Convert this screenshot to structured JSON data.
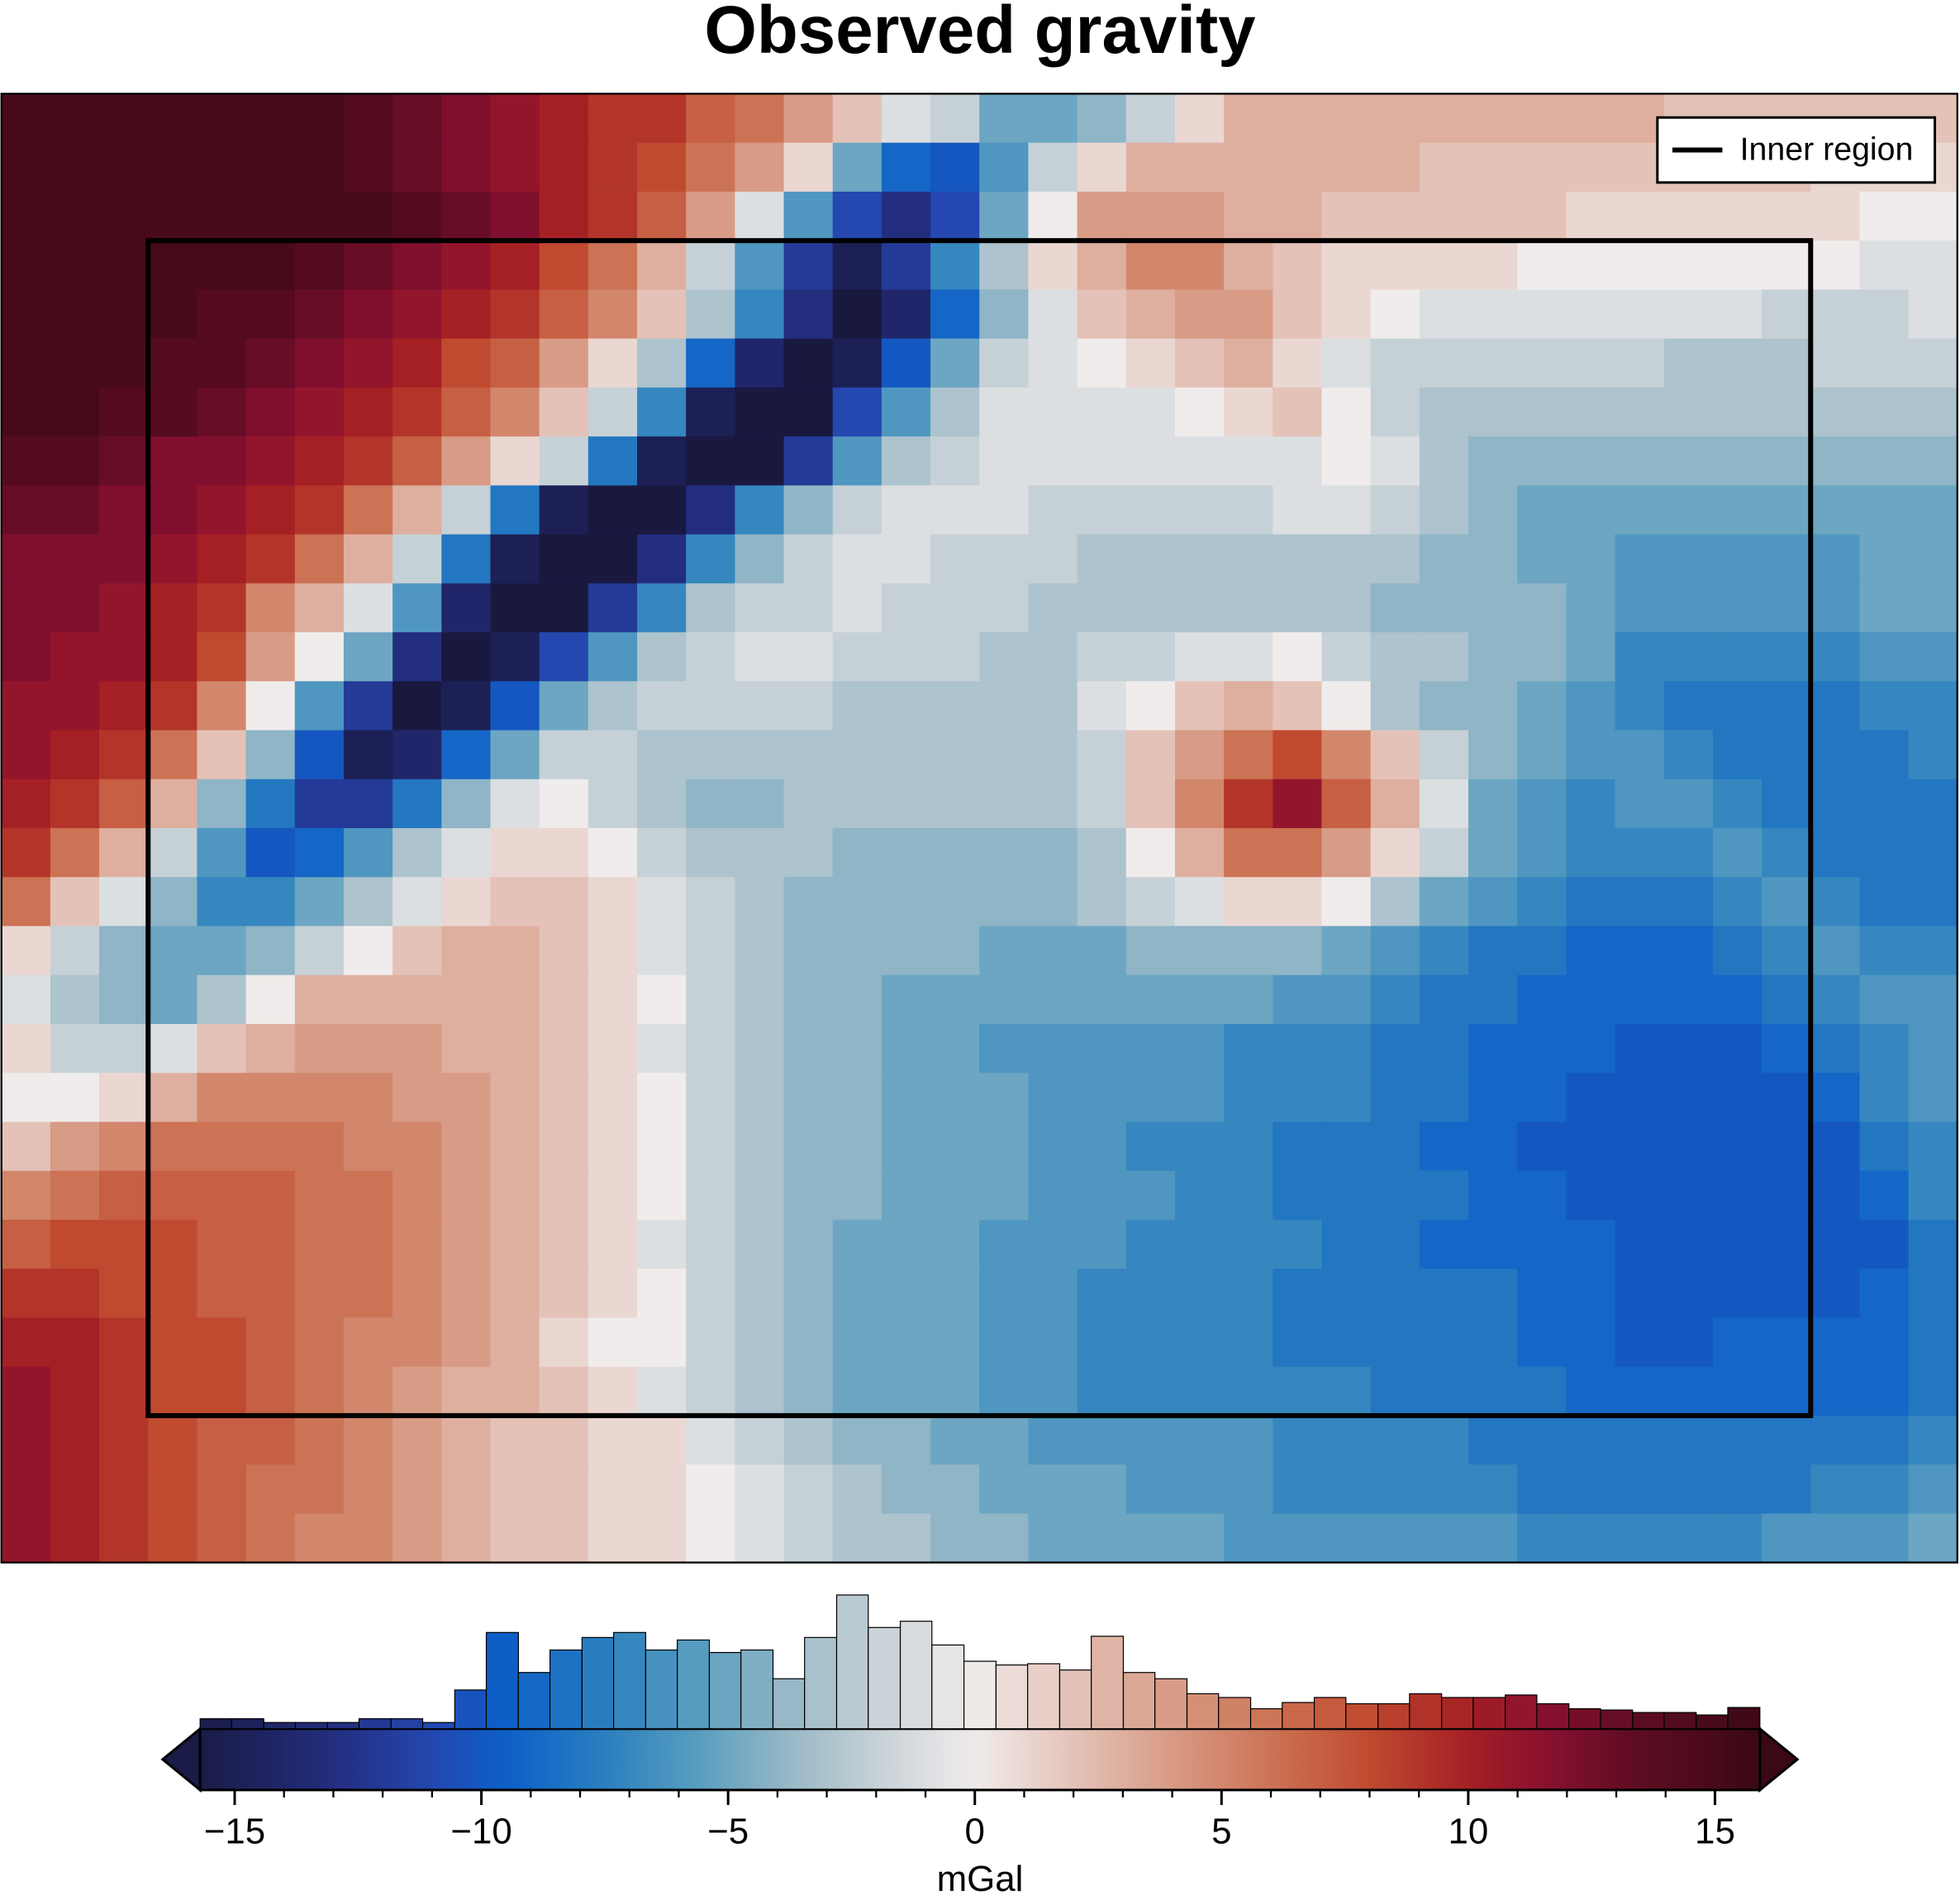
{
  "chart_data": {
    "type": "heatmap",
    "title": "Observed gravity",
    "z": [
      [
        15,
        15,
        15,
        15,
        15,
        15,
        15,
        14,
        13,
        12,
        11,
        10,
        9,
        9,
        7,
        6,
        4,
        2,
        -1,
        -2,
        -5,
        -5,
        -4,
        -2,
        1,
        3,
        3,
        3,
        3,
        3,
        3,
        3,
        3,
        3,
        2,
        2,
        2,
        2,
        2,
        2
      ],
      [
        15,
        15,
        15,
        15,
        15,
        15,
        15,
        14,
        13,
        12,
        11,
        10,
        9,
        8,
        6,
        4,
        1,
        -5,
        -9,
        -10,
        -6,
        -2,
        1,
        3,
        3,
        3,
        3,
        3,
        3,
        2,
        2,
        2,
        2,
        2,
        2,
        2,
        2,
        1,
        1,
        1
      ],
      [
        15,
        15,
        15,
        15,
        15,
        15,
        15,
        15,
        14,
        13,
        12,
        10,
        9,
        7,
        4,
        -1,
        -6,
        -11,
        -13,
        -11,
        -5,
        0,
        4,
        4,
        4,
        3,
        3,
        2,
        2,
        2,
        2,
        2,
        1,
        1,
        1,
        1,
        1,
        1,
        0,
        0
      ],
      [
        15,
        15,
        15,
        15,
        15,
        15,
        14,
        13,
        12,
        11,
        10,
        8,
        6,
        3,
        -2,
        -6,
        -12,
        -15,
        -12,
        -7,
        -3,
        1,
        3,
        5,
        5,
        3,
        2,
        1,
        1,
        1,
        1,
        0,
        0,
        0,
        0,
        0,
        0,
        0,
        -1,
        -1
      ],
      [
        15,
        15,
        15,
        15,
        14,
        14,
        13,
        12,
        11,
        10,
        9,
        7,
        5,
        2,
        -3,
        -7,
        -13,
        -16,
        -14,
        -9,
        -4,
        -1,
        2,
        3,
        4,
        4,
        2,
        1,
        0,
        -1,
        -1,
        -1,
        -1,
        -1,
        -1,
        -1,
        -2,
        -2,
        -2,
        -1
      ],
      [
        15,
        15,
        15,
        14,
        14,
        13,
        12,
        11,
        10,
        8,
        7,
        4,
        1,
        -3,
        -9,
        -14,
        -16,
        -15,
        -10,
        -5,
        -2,
        -1,
        0,
        1,
        2,
        3,
        1,
        -1,
        -2,
        -2,
        -2,
        -2,
        -2,
        -2,
        -3,
        -3,
        -3,
        -2,
        -2,
        -2
      ],
      [
        15,
        15,
        14,
        14,
        13,
        12,
        11,
        10,
        9,
        7,
        5,
        2,
        -2,
        -7,
        -15,
        -16,
        -16,
        -11,
        -6,
        -3,
        -1,
        -1,
        -1,
        -1,
        0,
        1,
        2,
        0,
        -2,
        -3,
        -3,
        -3,
        -3,
        -3,
        -3,
        -3,
        -3,
        -3,
        -3,
        -3
      ],
      [
        14,
        14,
        13,
        12,
        12,
        11,
        10,
        9,
        7,
        4,
        1,
        -2,
        -8,
        -15,
        -16,
        -16,
        -12,
        -6,
        -3,
        -2,
        -1,
        -1,
        -1,
        -1,
        -1,
        -1,
        -1,
        0,
        -1,
        -3,
        -4,
        -4,
        -4,
        -4,
        -4,
        -4,
        -4,
        -4,
        -4,
        -4
      ],
      [
        13,
        13,
        12,
        12,
        11,
        10,
        9,
        6,
        3,
        -2,
        -8,
        -15,
        -16,
        -16,
        -13,
        -7,
        -4,
        -2,
        -1,
        -1,
        -1,
        -2,
        -2,
        -2,
        -2,
        -2,
        -1,
        -1,
        -2,
        -3,
        -4,
        -5,
        -5,
        -5,
        -5,
        -5,
        -5,
        -5,
        -5,
        -5
      ],
      [
        12,
        12,
        12,
        11,
        10,
        9,
        6,
        3,
        -2,
        -8,
        -15,
        -16,
        -16,
        -13,
        -7,
        -4,
        -2,
        -1,
        -1,
        -2,
        -2,
        -2,
        -3,
        -3,
        -3,
        -3,
        -3,
        -3,
        -3,
        -4,
        -4,
        -5,
        -5,
        -6,
        -6,
        -6,
        -6,
        -6,
        -5,
        -5
      ],
      [
        12,
        12,
        11,
        10,
        9,
        5,
        3,
        -1,
        -6,
        -14,
        -16,
        -16,
        -12,
        -7,
        -3,
        -2,
        -2,
        -1,
        -2,
        -2,
        -2,
        -3,
        -3,
        -3,
        -3,
        -3,
        -3,
        -3,
        -4,
        -4,
        -4,
        -4,
        -5,
        -6,
        -6,
        -6,
        -6,
        -6,
        -5,
        -5
      ],
      [
        12,
        11,
        11,
        10,
        8,
        4,
        0,
        -5,
        -13,
        -16,
        -15,
        -11,
        -6,
        -3,
        -2,
        -1,
        -1,
        -2,
        -2,
        -2,
        -3,
        -3,
        -2,
        -2,
        -1,
        -1,
        0,
        -2,
        -3,
        -3,
        -4,
        -4,
        -5,
        -7,
        -7,
        -7,
        -7,
        -7,
        -6,
        -6
      ],
      [
        11,
        11,
        10,
        9,
        5,
        0,
        -6,
        -12,
        -16,
        -15,
        -10,
        -5,
        -3,
        -2,
        -2,
        -2,
        -2,
        -3,
        -3,
        -3,
        -3,
        -3,
        -1,
        0,
        2,
        3,
        2,
        0,
        -3,
        -4,
        -4,
        -5,
        -6,
        -7,
        -8,
        -8,
        -8,
        -8,
        -7,
        -7
      ],
      [
        11,
        10,
        9,
        6,
        2,
        -4,
        -10,
        -15,
        -14,
        -9,
        -5,
        -2,
        -2,
        -3,
        -3,
        -3,
        -3,
        -3,
        -3,
        -3,
        -3,
        -3,
        -2,
        2,
        4,
        6,
        8,
        5,
        2,
        -2,
        -4,
        -5,
        -6,
        -6,
        -7,
        -8,
        -8,
        -8,
        -8,
        -7
      ],
      [
        10,
        9,
        7,
        3,
        -4,
        -8,
        -12,
        -12,
        -8,
        -4,
        -1,
        0,
        -2,
        -3,
        -4,
        -4,
        -3,
        -3,
        -3,
        -3,
        -3,
        -3,
        -2,
        2,
        5,
        9,
        11,
        7,
        3,
        -1,
        -5,
        -6,
        -7,
        -6,
        -6,
        -7,
        -8,
        -8,
        -8,
        -8
      ],
      [
        9,
        6,
        3,
        -2,
        -6,
        -10,
        -9,
        -6,
        -3,
        -1,
        1,
        1,
        0,
        -2,
        -3,
        -3,
        -3,
        -4,
        -4,
        -4,
        -4,
        -4,
        -3,
        0,
        3,
        6,
        6,
        4,
        1,
        -2,
        -5,
        -6,
        -7,
        -7,
        -7,
        -6,
        -7,
        -8,
        -8,
        -8
      ],
      [
        6,
        2,
        -1,
        -4,
        -7,
        -7,
        -5,
        -3,
        -1,
        1,
        2,
        2,
        1,
        -1,
        -2,
        -3,
        -4,
        -4,
        -4,
        -4,
        -4,
        -4,
        -3,
        -2,
        -1,
        1,
        1,
        0,
        -3,
        -5,
        -6,
        -7,
        -8,
        -8,
        -8,
        -7,
        -6,
        -7,
        -8,
        -8
      ],
      [
        1,
        -2,
        -4,
        -5,
        -5,
        -4,
        -2,
        0,
        2,
        3,
        3,
        2,
        1,
        -1,
        -2,
        -3,
        -4,
        -4,
        -4,
        -4,
        -5,
        -5,
        -5,
        -4,
        -4,
        -4,
        -4,
        -5,
        -6,
        -7,
        -8,
        -8,
        -9,
        -9,
        -9,
        -8,
        -7,
        -6,
        -7,
        -7
      ],
      [
        -1,
        -3,
        -4,
        -5,
        -3,
        0,
        3,
        3,
        3,
        3,
        3,
        2,
        1,
        0,
        -2,
        -3,
        -4,
        -4,
        -5,
        -5,
        -5,
        -5,
        -5,
        -5,
        -5,
        -5,
        -6,
        -6,
        -7,
        -8,
        -8,
        -9,
        -9,
        -9,
        -9,
        -9,
        -8,
        -7,
        -6,
        -6
      ],
      [
        1,
        -2,
        -2,
        -1,
        2,
        3,
        4,
        4,
        4,
        3,
        3,
        2,
        1,
        -1,
        -2,
        -3,
        -4,
        -4,
        -5,
        -5,
        -6,
        -6,
        -6,
        -6,
        -6,
        -7,
        -7,
        -7,
        -8,
        -8,
        -9,
        -9,
        -9,
        -10,
        -10,
        -10,
        -9,
        -8,
        -7,
        -6
      ],
      [
        0,
        0,
        1,
        3,
        5,
        5,
        5,
        5,
        4,
        4,
        3,
        2,
        1,
        0,
        -2,
        -3,
        -4,
        -4,
        -5,
        -5,
        -5,
        -6,
        -6,
        -6,
        -6,
        -7,
        -7,
        -7,
        -8,
        -8,
        -9,
        -9,
        -10,
        -10,
        -10,
        -10,
        -10,
        -9,
        -7,
        -6
      ],
      [
        2,
        4,
        5,
        6,
        6,
        6,
        6,
        5,
        5,
        4,
        3,
        2,
        1,
        0,
        -2,
        -3,
        -4,
        -4,
        -5,
        -5,
        -5,
        -6,
        -6,
        -7,
        -7,
        -7,
        -8,
        -8,
        -8,
        -9,
        -9,
        -10,
        -10,
        -10,
        -10,
        -10,
        -10,
        -10,
        -8,
        -7
      ],
      [
        5,
        6,
        7,
        7,
        7,
        7,
        6,
        6,
        5,
        4,
        3,
        2,
        1,
        0,
        -2,
        -3,
        -4,
        -4,
        -5,
        -5,
        -5,
        -6,
        -6,
        -6,
        -7,
        -7,
        -8,
        -8,
        -8,
        -8,
        -9,
        -9,
        -10,
        -10,
        -10,
        -10,
        -10,
        -10,
        -9,
        -7
      ],
      [
        7,
        8,
        8,
        8,
        7,
        7,
        6,
        6,
        5,
        4,
        3,
        2,
        1,
        -1,
        -2,
        -3,
        -4,
        -5,
        -5,
        -5,
        -6,
        -6,
        -6,
        -7,
        -7,
        -7,
        -7,
        -8,
        -8,
        -9,
        -9,
        -9,
        -9,
        -10,
        -10,
        -10,
        -10,
        -10,
        -10,
        -8
      ],
      [
        9,
        9,
        8,
        8,
        7,
        7,
        6,
        6,
        5,
        4,
        3,
        2,
        1,
        0,
        -2,
        -3,
        -4,
        -5,
        -5,
        -5,
        -6,
        -6,
        -7,
        -7,
        -7,
        -7,
        -8,
        -8,
        -8,
        -8,
        -8,
        -9,
        -9,
        -10,
        -10,
        -10,
        -10,
        -10,
        -9,
        -8
      ],
      [
        10,
        10,
        9,
        8,
        8,
        7,
        6,
        5,
        5,
        4,
        3,
        1,
        0,
        0,
        -2,
        -3,
        -4,
        -5,
        -5,
        -5,
        -6,
        -6,
        -7,
        -7,
        -7,
        -7,
        -8,
        -8,
        -8,
        -8,
        -8,
        -9,
        -9,
        -10,
        -10,
        -9,
        -9,
        -9,
        -9,
        -8
      ],
      [
        11,
        10,
        9,
        8,
        8,
        7,
        6,
        5,
        4,
        3,
        3,
        2,
        1,
        -1,
        -2,
        -3,
        -4,
        -5,
        -5,
        -5,
        -6,
        -6,
        -7,
        -7,
        -7,
        -7,
        -7,
        -7,
        -8,
        -8,
        -8,
        -8,
        -9,
        -9,
        -9,
        -9,
        -9,
        -9,
        -9,
        -8
      ],
      [
        11,
        10,
        9,
        8,
        7,
        7,
        6,
        5,
        4,
        3,
        2,
        2,
        1,
        1,
        -1,
        -2,
        -3,
        -4,
        -4,
        -5,
        -5,
        -6,
        -6,
        -6,
        -6,
        -6,
        -7,
        -7,
        -7,
        -7,
        -8,
        -8,
        -8,
        -8,
        -8,
        -8,
        -8,
        -8,
        -8,
        -7
      ],
      [
        11,
        10,
        9,
        8,
        7,
        6,
        6,
        5,
        4,
        3,
        2,
        2,
        1,
        1,
        0,
        -1,
        -2,
        -3,
        -4,
        -4,
        -5,
        -5,
        -5,
        -6,
        -6,
        -6,
        -7,
        -7,
        -7,
        -7,
        -7,
        -8,
        -8,
        -8,
        -8,
        -8,
        -8,
        -7,
        -7,
        -6
      ],
      [
        11,
        10,
        9,
        8,
        7,
        6,
        5,
        5,
        4,
        3,
        2,
        2,
        1,
        1,
        0,
        -1,
        -2,
        -3,
        -3,
        -4,
        -4,
        -5,
        -5,
        -5,
        -5,
        -6,
        -6,
        -6,
        -6,
        -6,
        -6,
        -7,
        -7,
        -7,
        -7,
        -7,
        -6,
        -6,
        -6,
        -5
      ]
    ],
    "colormap": [
      [
        -16,
        "#191940"
      ],
      [
        -13,
        "#232d7e"
      ],
      [
        -11,
        "#2447b0"
      ],
      [
        -9.5,
        "#0c5fc8"
      ],
      [
        -7.5,
        "#2a7fbf"
      ],
      [
        -5.5,
        "#5b9fc0"
      ],
      [
        -3.5,
        "#a0bcc8"
      ],
      [
        -1.5,
        "#d2d8dc"
      ],
      [
        0,
        "#f0eceb"
      ],
      [
        2,
        "#e4c2b8"
      ],
      [
        4,
        "#d89b85"
      ],
      [
        6,
        "#cc7355"
      ],
      [
        8,
        "#c04a30"
      ],
      [
        10,
        "#a52024"
      ],
      [
        11.5,
        "#8a1030"
      ],
      [
        13.5,
        "#5c0c22"
      ],
      [
        16,
        "#3a0815"
      ]
    ],
    "inner_region": {
      "name": "Inner region",
      "x": [
        3,
        37
      ],
      "y": [
        3,
        27
      ],
      "color": "#000000"
    },
    "legend": "upper right",
    "colorbar": {
      "label": "mGal",
      "xlim": [
        -15.7,
        15.91
      ],
      "xticks": [
        {
          "value": -15,
          "label": "−15"
        },
        {
          "value": -10,
          "label": "−10"
        },
        {
          "value": -5,
          "label": "−5"
        },
        0,
        5,
        10,
        15
      ],
      "xminorticks": [
        -15,
        -14,
        -13,
        -12,
        -11,
        -10,
        -9,
        -8,
        -7,
        -6,
        -5,
        -4,
        -3,
        -2,
        -1,
        0,
        1,
        2,
        3,
        4,
        5,
        6,
        7,
        8,
        9,
        10,
        11,
        12,
        13,
        14,
        15
      ],
      "histogram": {
        "bins": [
          -15.7,
          -15.06,
          -14.41,
          -13.77,
          -13.12,
          -12.48,
          -11.83,
          -11.19,
          -10.54,
          -9.9,
          -9.25,
          -8.61,
          -7.96,
          -7.32,
          -6.67,
          -6.03,
          -5.38,
          -4.74,
          -4.09,
          -3.45,
          -2.8,
          -2.16,
          -1.51,
          -0.87,
          -0.22,
          0.43,
          1.07,
          1.72,
          2.36,
          3.01,
          3.65,
          4.3,
          4.94,
          5.59,
          6.23,
          6.88,
          7.52,
          8.17,
          8.81,
          9.46,
          10.1,
          10.75,
          11.39,
          12.04,
          12.68,
          13.33,
          13.97,
          14.62,
          15.26,
          15.91
        ],
        "counts": [
          8,
          8,
          5,
          5,
          5,
          8,
          8,
          5,
          31,
          77,
          45,
          63,
          73,
          77,
          63,
          71,
          61,
          63,
          40,
          73,
          107,
          81,
          86,
          67,
          54,
          51,
          52,
          47,
          74,
          45,
          40,
          28,
          25,
          16,
          21,
          25,
          20,
          20,
          28,
          25,
          25,
          27,
          20,
          16,
          15,
          13,
          13,
          11,
          17
        ]
      }
    }
  }
}
